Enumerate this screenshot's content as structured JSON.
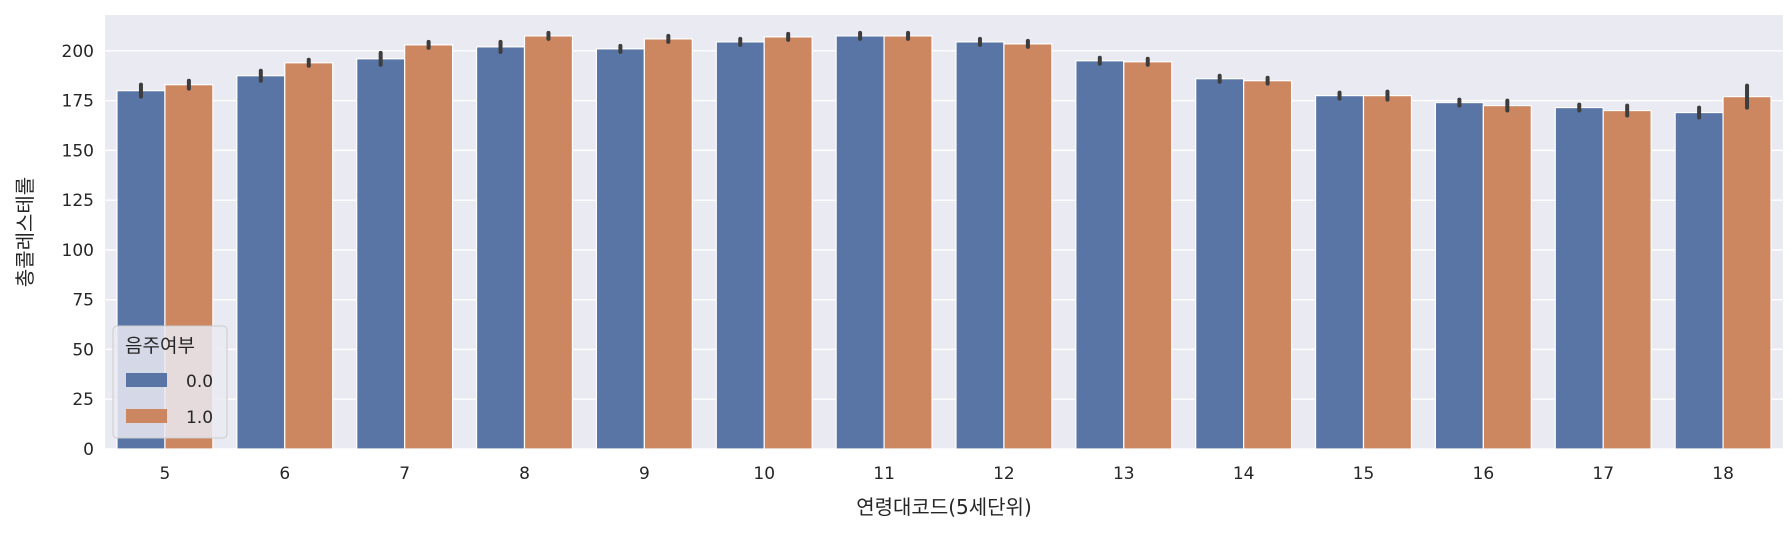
{
  "chart_data": {
    "type": "bar",
    "title": "",
    "xlabel": "연령대코드(5세단위)",
    "ylabel": "총콜레스테롤",
    "categories": [
      "5",
      "6",
      "7",
      "8",
      "9",
      "10",
      "11",
      "12",
      "13",
      "14",
      "15",
      "16",
      "17",
      "18"
    ],
    "ylim": [
      0,
      218
    ],
    "yticks": [
      0,
      25,
      50,
      75,
      100,
      125,
      150,
      175,
      200
    ],
    "grid": true,
    "legend": {
      "title": "음주여부",
      "position": "lower-left"
    },
    "series": [
      {
        "name": "0.0",
        "color": "#5875a5",
        "values": [
          180,
          187.5,
          196,
          202,
          201,
          204.5,
          207.5,
          204.5,
          195,
          186,
          177.5,
          174,
          171.5,
          169
        ],
        "error": [
          3,
          2.5,
          3,
          2.5,
          1.5,
          1.5,
          1.5,
          1.5,
          1.5,
          1.5,
          1.5,
          1.5,
          1.5,
          2.5
        ]
      },
      {
        "name": "1.0",
        "color": "#cc8660",
        "values": [
          183,
          194,
          203,
          207.5,
          206,
          207,
          207.5,
          203.5,
          194.5,
          185,
          177.5,
          172.5,
          170,
          177
        ],
        "error": [
          2,
          1.5,
          1.5,
          1.5,
          1.5,
          1.5,
          1.5,
          1.5,
          1.5,
          1.5,
          2,
          2.5,
          2.5,
          5.5
        ]
      }
    ]
  }
}
